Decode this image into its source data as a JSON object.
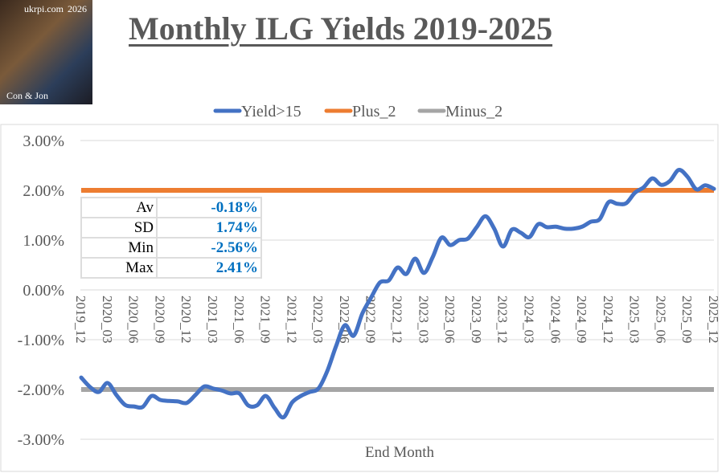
{
  "title": "Monthly ILG Yields 2019-2025",
  "logo": {
    "site": "ukrpi.com",
    "year": "2026",
    "credit": "Con & Jon"
  },
  "stats": [
    {
      "label": "Av",
      "value": "-0.18%"
    },
    {
      "label": "SD",
      "value": "1.74%"
    },
    {
      "label": "Min",
      "value": "-2.56%"
    },
    {
      "label": "Max",
      "value": "2.41%"
    }
  ],
  "chart_data": {
    "type": "line",
    "title": "Monthly ILG Yields 2019-2025",
    "xlabel": "End Month",
    "ylabel": "",
    "ylim": [
      -3,
      3
    ],
    "yticks": [
      "3.00%",
      "2.00%",
      "1.00%",
      "0.00%",
      "-1.00%",
      "-2.00%",
      "-3.00%"
    ],
    "ytick_values": [
      3,
      2,
      1,
      0,
      -1,
      -2,
      -3
    ],
    "xtick_labels": [
      "2019_12",
      "2020_03",
      "2020_06",
      "2020_09",
      "2020_12",
      "2021_03",
      "2021_06",
      "2021_09",
      "2021_12",
      "2022_03",
      "2022_06",
      "2022_09",
      "2022_12",
      "2023_03",
      "2023_06",
      "2023_09",
      "2023_12",
      "2024_03",
      "2024_06",
      "2024_09",
      "2024_12",
      "2025_03",
      "2025_06",
      "2025_09",
      "2025_12"
    ],
    "grid": true,
    "legend": "top",
    "colors": {
      "Yield>15": "#4472c4",
      "Plus_2": "#ed7d31",
      "Minus_2": "#a5a5a5"
    },
    "series": [
      {
        "name": "Yield>15",
        "values": [
          -1.76,
          -1.95,
          -2.05,
          -1.87,
          -2.11,
          -2.31,
          -2.34,
          -2.35,
          -2.13,
          -2.21,
          -2.23,
          -2.24,
          -2.27,
          -2.11,
          -1.94,
          -1.98,
          -2.02,
          -2.08,
          -2.08,
          -2.32,
          -2.32,
          -2.13,
          -2.37,
          -2.56,
          -2.26,
          -2.13,
          -2.05,
          -1.98,
          -1.63,
          -1.13,
          -0.71,
          -0.92,
          -0.47,
          -0.15,
          0.15,
          0.19,
          0.45,
          0.32,
          0.63,
          0.34,
          0.66,
          1.05,
          0.9,
          1.0,
          1.03,
          1.26,
          1.48,
          1.23,
          0.87,
          1.21,
          1.15,
          1.06,
          1.32,
          1.26,
          1.27,
          1.23,
          1.23,
          1.27,
          1.37,
          1.42,
          1.76,
          1.73,
          1.74,
          1.95,
          2.06,
          2.24,
          2.11,
          2.19,
          2.41,
          2.27,
          2.02,
          2.1,
          2.03
        ]
      },
      {
        "name": "Plus_2",
        "constant": 2
      },
      {
        "name": "Minus_2",
        "constant": -2
      }
    ]
  }
}
